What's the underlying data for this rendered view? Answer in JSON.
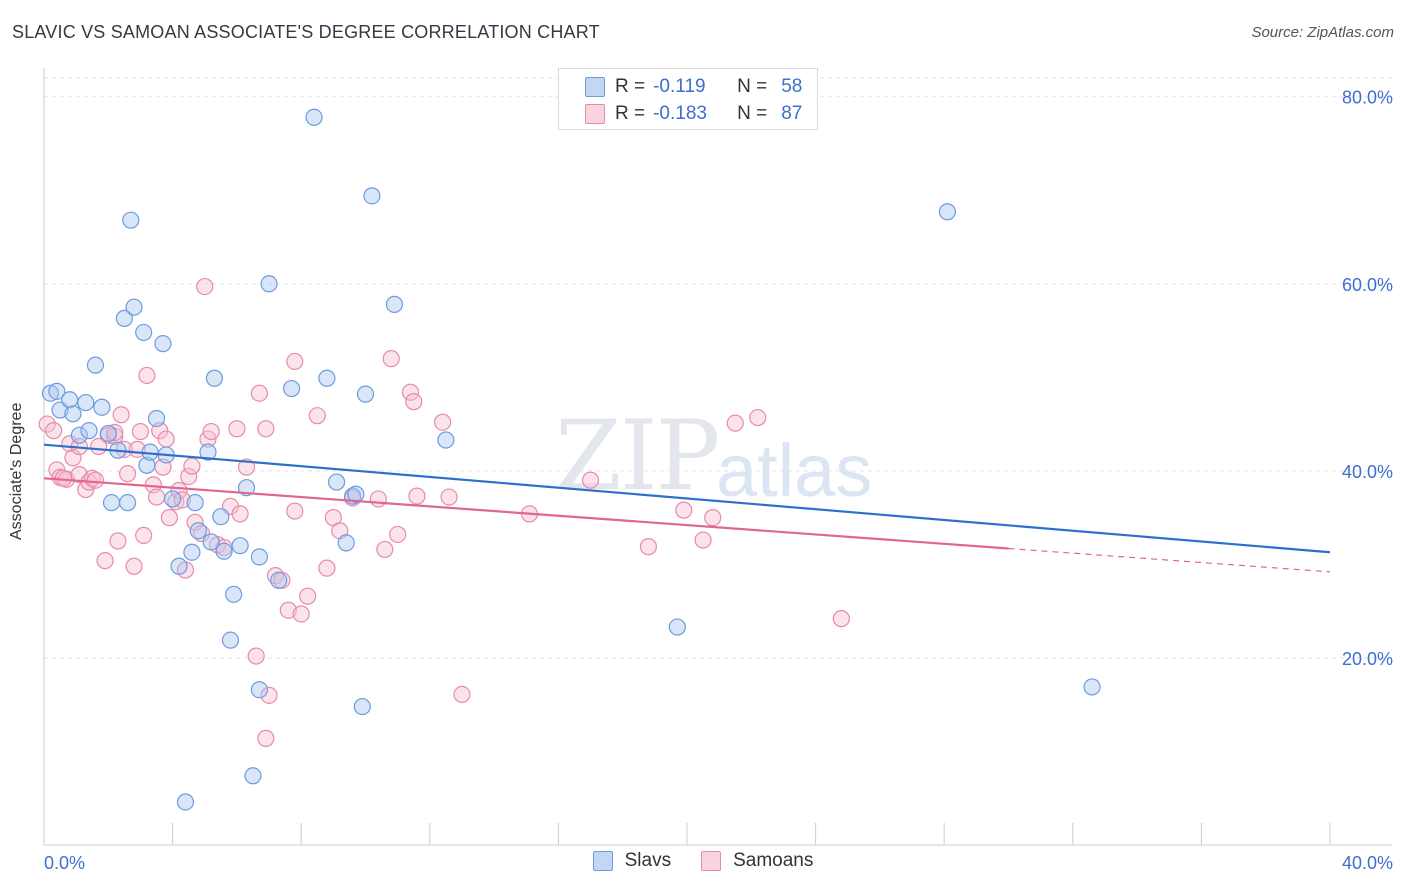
{
  "header": {
    "title": "SLAVIC VS SAMOAN ASSOCIATE'S DEGREE CORRELATION CHART",
    "source": "Source: ZipAtlas.com"
  },
  "watermark": {
    "zip": "ZIP",
    "atlas": "atlas"
  },
  "legend": {
    "r_label": "R =",
    "n_label": "N =",
    "slavs": {
      "r": "-0.119",
      "n": "58"
    },
    "samoans": {
      "r": "-0.183",
      "n": "87"
    }
  },
  "colors": {
    "slavs_fill": "#aac8f0",
    "slavs_stroke": "#6d9be0",
    "slavs_line": "#2d6fcc",
    "samoans_fill": "#f7c1d3",
    "samoans_stroke": "#e88aab",
    "samoans_line": "#e0678f",
    "tick_label": "#3d6fd0",
    "grid": "#dde3ea"
  },
  "chart_data": {
    "type": "scatter",
    "title": "SLAVIC VS SAMOAN ASSOCIATE'S DEGREE CORRELATION CHART",
    "xlabel": "",
    "ylabel": "Associate's Degree",
    "xlim": [
      0,
      40
    ],
    "ylim": [
      0,
      82
    ],
    "x_tick_labels": [
      "0.0%",
      "40.0%"
    ],
    "y_ticks": [
      20,
      40,
      60,
      80
    ],
    "y_tick_labels": [
      "20.0%",
      "40.0%",
      "60.0%",
      "80.0%"
    ],
    "legend_labels": [
      "Slavs",
      "Samoans"
    ],
    "series": [
      {
        "name": "Slavs",
        "points": [
          [
            0.2,
            48.3
          ],
          [
            0.4,
            48.5
          ],
          [
            0.5,
            46.5
          ],
          [
            0.8,
            47.6
          ],
          [
            0.9,
            46.1
          ],
          [
            1.1,
            43.8
          ],
          [
            1.3,
            47.3
          ],
          [
            1.4,
            44.3
          ],
          [
            1.6,
            51.3
          ],
          [
            1.8,
            46.8
          ],
          [
            2.0,
            44.0
          ],
          [
            2.1,
            36.6
          ],
          [
            2.3,
            42.2
          ],
          [
            2.5,
            56.3
          ],
          [
            2.6,
            36.6
          ],
          [
            2.7,
            66.8
          ],
          [
            2.8,
            57.5
          ],
          [
            3.1,
            54.8
          ],
          [
            3.2,
            40.6
          ],
          [
            3.3,
            42.0
          ],
          [
            3.5,
            45.6
          ],
          [
            3.7,
            53.6
          ],
          [
            3.8,
            41.7
          ],
          [
            4.0,
            37.0
          ],
          [
            4.2,
            29.8
          ],
          [
            4.4,
            4.6
          ],
          [
            4.6,
            31.3
          ],
          [
            4.7,
            36.6
          ],
          [
            4.8,
            33.6
          ],
          [
            5.1,
            42.0
          ],
          [
            5.2,
            32.4
          ],
          [
            5.3,
            49.9
          ],
          [
            5.5,
            35.1
          ],
          [
            5.6,
            31.4
          ],
          [
            5.8,
            21.9
          ],
          [
            5.9,
            26.8
          ],
          [
            6.1,
            32.0
          ],
          [
            6.3,
            38.2
          ],
          [
            6.5,
            7.4
          ],
          [
            6.7,
            16.6
          ],
          [
            6.7,
            30.8
          ],
          [
            7.0,
            60.0
          ],
          [
            7.3,
            28.3
          ],
          [
            7.7,
            48.8
          ],
          [
            8.4,
            77.8
          ],
          [
            8.8,
            49.9
          ],
          [
            9.1,
            38.8
          ],
          [
            9.4,
            32.3
          ],
          [
            9.6,
            37.3
          ],
          [
            9.9,
            14.8
          ],
          [
            10.0,
            48.2
          ],
          [
            10.2,
            69.4
          ],
          [
            10.9,
            57.8
          ],
          [
            12.5,
            43.3
          ],
          [
            19.7,
            23.3
          ],
          [
            28.1,
            67.7
          ],
          [
            32.6,
            16.9
          ],
          [
            9.7,
            37.5
          ]
        ]
      },
      {
        "name": "Samoans",
        "points": [
          [
            0.1,
            45.0
          ],
          [
            0.3,
            44.3
          ],
          [
            0.4,
            40.1
          ],
          [
            0.5,
            39.3
          ],
          [
            0.7,
            39.1
          ],
          [
            0.8,
            42.9
          ],
          [
            0.9,
            41.4
          ],
          [
            1.1,
            42.6
          ],
          [
            1.1,
            39.6
          ],
          [
            1.3,
            38.0
          ],
          [
            1.4,
            38.8
          ],
          [
            1.5,
            39.2
          ],
          [
            1.6,
            39.0
          ],
          [
            1.9,
            30.4
          ],
          [
            2.0,
            43.8
          ],
          [
            2.2,
            43.7
          ],
          [
            2.3,
            32.5
          ],
          [
            2.4,
            46.0
          ],
          [
            2.5,
            42.3
          ],
          [
            2.6,
            39.7
          ],
          [
            2.8,
            29.8
          ],
          [
            2.9,
            42.3
          ],
          [
            3.0,
            44.2
          ],
          [
            3.1,
            33.1
          ],
          [
            3.2,
            50.2
          ],
          [
            3.4,
            38.5
          ],
          [
            3.5,
            37.2
          ],
          [
            3.6,
            44.3
          ],
          [
            3.7,
            40.4
          ],
          [
            3.8,
            43.4
          ],
          [
            3.9,
            35.0
          ],
          [
            4.1,
            36.7
          ],
          [
            4.2,
            37.9
          ],
          [
            4.3,
            36.9
          ],
          [
            4.4,
            29.4
          ],
          [
            4.5,
            39.4
          ],
          [
            4.6,
            40.5
          ],
          [
            4.7,
            34.5
          ],
          [
            4.9,
            33.3
          ],
          [
            5.0,
            59.7
          ],
          [
            5.1,
            43.4
          ],
          [
            5.2,
            44.2
          ],
          [
            5.4,
            32.1
          ],
          [
            5.6,
            31.8
          ],
          [
            5.8,
            36.2
          ],
          [
            6.0,
            44.5
          ],
          [
            6.1,
            35.4
          ],
          [
            6.3,
            40.4
          ],
          [
            6.6,
            20.2
          ],
          [
            6.7,
            48.3
          ],
          [
            6.9,
            11.4
          ],
          [
            6.9,
            44.5
          ],
          [
            7.0,
            16.0
          ],
          [
            7.2,
            28.8
          ],
          [
            7.4,
            28.3
          ],
          [
            7.6,
            25.1
          ],
          [
            7.8,
            51.7
          ],
          [
            7.8,
            35.7
          ],
          [
            8.0,
            24.7
          ],
          [
            8.2,
            26.6
          ],
          [
            8.5,
            45.9
          ],
          [
            8.8,
            29.6
          ],
          [
            9.0,
            35.0
          ],
          [
            9.2,
            33.6
          ],
          [
            9.6,
            37.1
          ],
          [
            10.4,
            37.0
          ],
          [
            10.6,
            31.6
          ],
          [
            10.8,
            52.0
          ],
          [
            11.0,
            33.2
          ],
          [
            11.4,
            48.4
          ],
          [
            11.5,
            47.4
          ],
          [
            11.6,
            37.3
          ],
          [
            12.4,
            45.2
          ],
          [
            12.6,
            37.2
          ],
          [
            13.0,
            16.1
          ],
          [
            15.1,
            35.4
          ],
          [
            17.0,
            39.0
          ],
          [
            18.8,
            31.9
          ],
          [
            19.9,
            35.8
          ],
          [
            20.5,
            32.6
          ],
          [
            20.8,
            35.0
          ],
          [
            21.5,
            45.1
          ],
          [
            22.2,
            45.7
          ],
          [
            24.8,
            24.2
          ],
          [
            1.7,
            42.6
          ],
          [
            2.2,
            44.1
          ],
          [
            0.6,
            39.2
          ]
        ]
      }
    ],
    "trend_lines": [
      {
        "name": "Slavs",
        "x": [
          0,
          40
        ],
        "y": [
          42.8,
          31.3
        ]
      },
      {
        "name": "Samoans",
        "x": [
          0,
          30.0
        ],
        "y": [
          39.2,
          31.7
        ],
        "dashed_to": [
          40,
          29.2
        ]
      }
    ]
  }
}
